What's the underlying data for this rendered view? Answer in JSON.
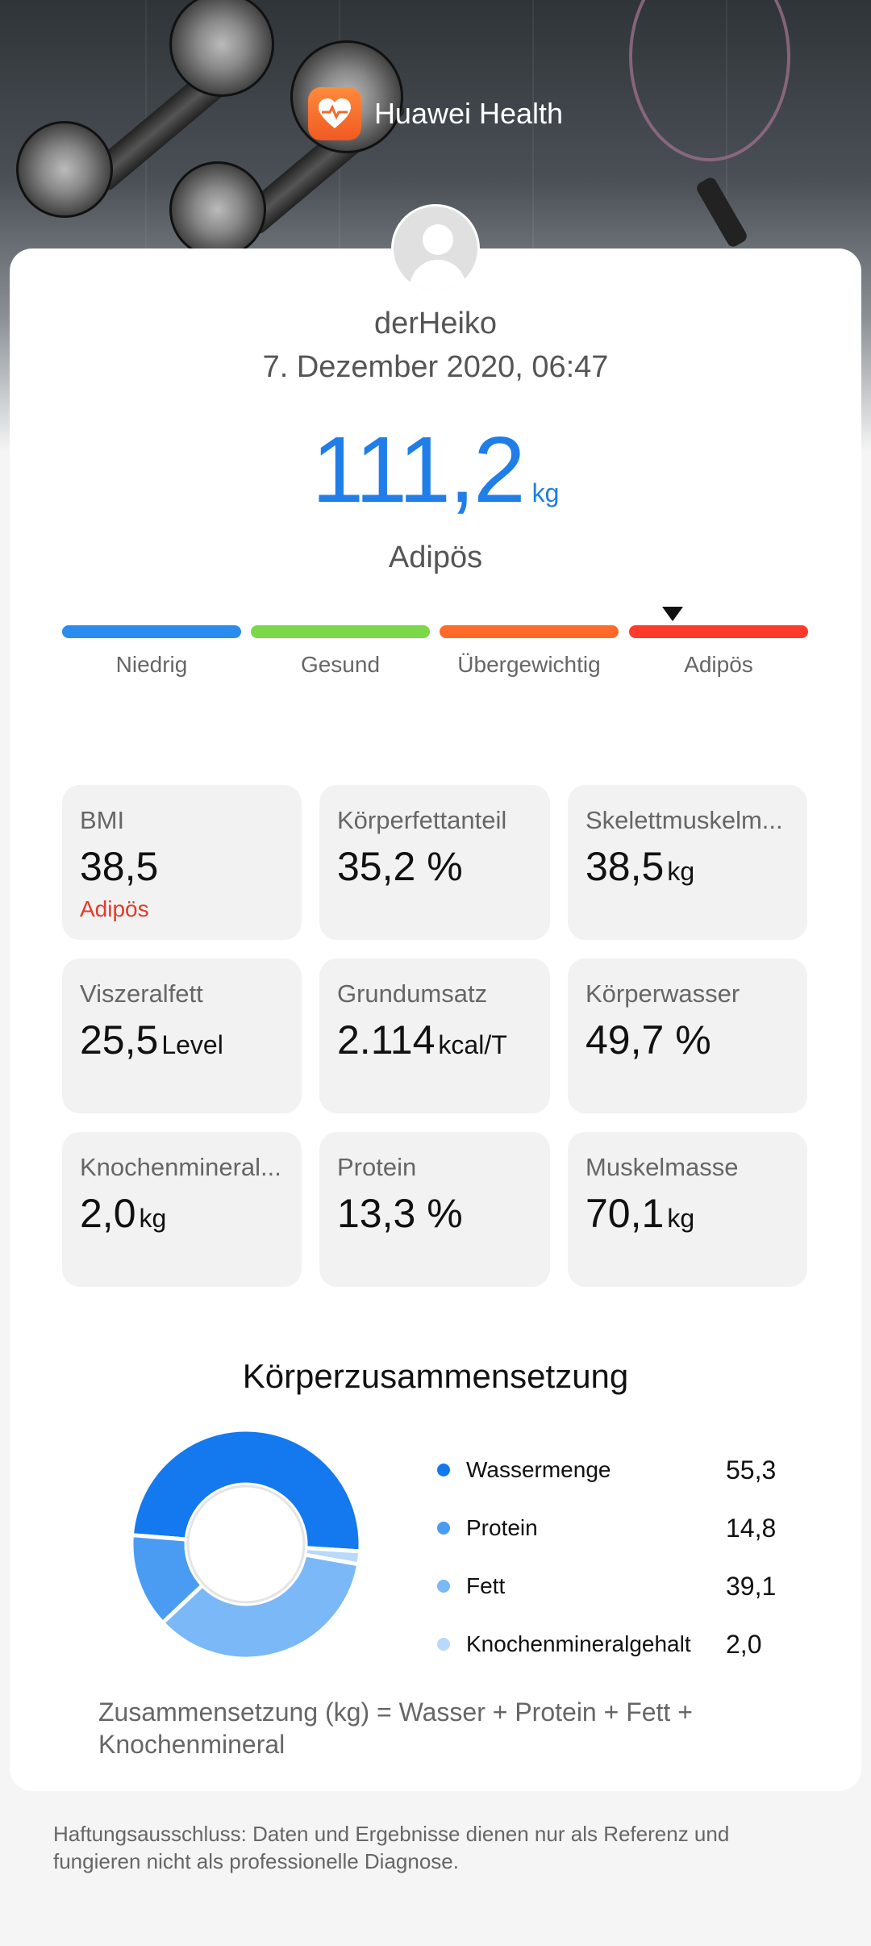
{
  "brand": {
    "name": "Huawei Health",
    "logo_icon": "heart-app-icon"
  },
  "profile": {
    "username": "derHeiko",
    "datetime": "7. Dezember 2020, 06:47"
  },
  "weight": {
    "value": "111,2",
    "unit": "kg",
    "category": "Adipös",
    "accent_color": "#1f7ee8"
  },
  "scale": {
    "segments": [
      {
        "label": "Niedrig",
        "color": "#2b8cf0"
      },
      {
        "label": "Gesund",
        "color": "#7bd84a"
      },
      {
        "label": "Übergewichtig",
        "color": "#ff6a2a"
      },
      {
        "label": "Adipös",
        "color": "#ff3a2a"
      }
    ],
    "marker_segment": "Adipös"
  },
  "metrics": [
    {
      "label": "BMI",
      "value": "38,5",
      "unit": "",
      "status": "Adipös"
    },
    {
      "label": "Körperfettanteil",
      "value": "35,2 %",
      "unit": ""
    },
    {
      "label": "Skelettmuskelm...",
      "value": "38,5",
      "unit": "kg"
    },
    {
      "label": "Viszeralfett",
      "value": "25,5",
      "unit": "Level"
    },
    {
      "label": "Grundumsatz",
      "value": "2.114",
      "unit": "kcal/T"
    },
    {
      "label": "Körperwasser",
      "value": "49,7 %",
      "unit": ""
    },
    {
      "label": "Knochenmineral...",
      "value": "2,0",
      "unit": "kg"
    },
    {
      "label": "Protein",
      "value": "13,3 %",
      "unit": ""
    },
    {
      "label": "Muskelmasse",
      "value": "70,1",
      "unit": "kg"
    }
  ],
  "composition": {
    "title": "Körperzusammensetzung",
    "formula": "Zusammensetzung (kg) = Wasser + Protein + Fett + Knochenmineral",
    "items": [
      {
        "label": "Wassermenge",
        "value": "55,3",
        "color": "#1478ee"
      },
      {
        "label": "Protein",
        "value": "14,8",
        "color": "#4a9cf2"
      },
      {
        "label": "Fett",
        "value": "39,1",
        "color": "#7ab8f7"
      },
      {
        "label": "Knochenmineralgehalt",
        "value": "2,0",
        "color": "#b8d9fb"
      }
    ]
  },
  "disclaimer": "Haftungsausschluss: Daten und Ergebnisse dienen nur als Referenz und fungieren nicht als professionelle Diagnose."
}
